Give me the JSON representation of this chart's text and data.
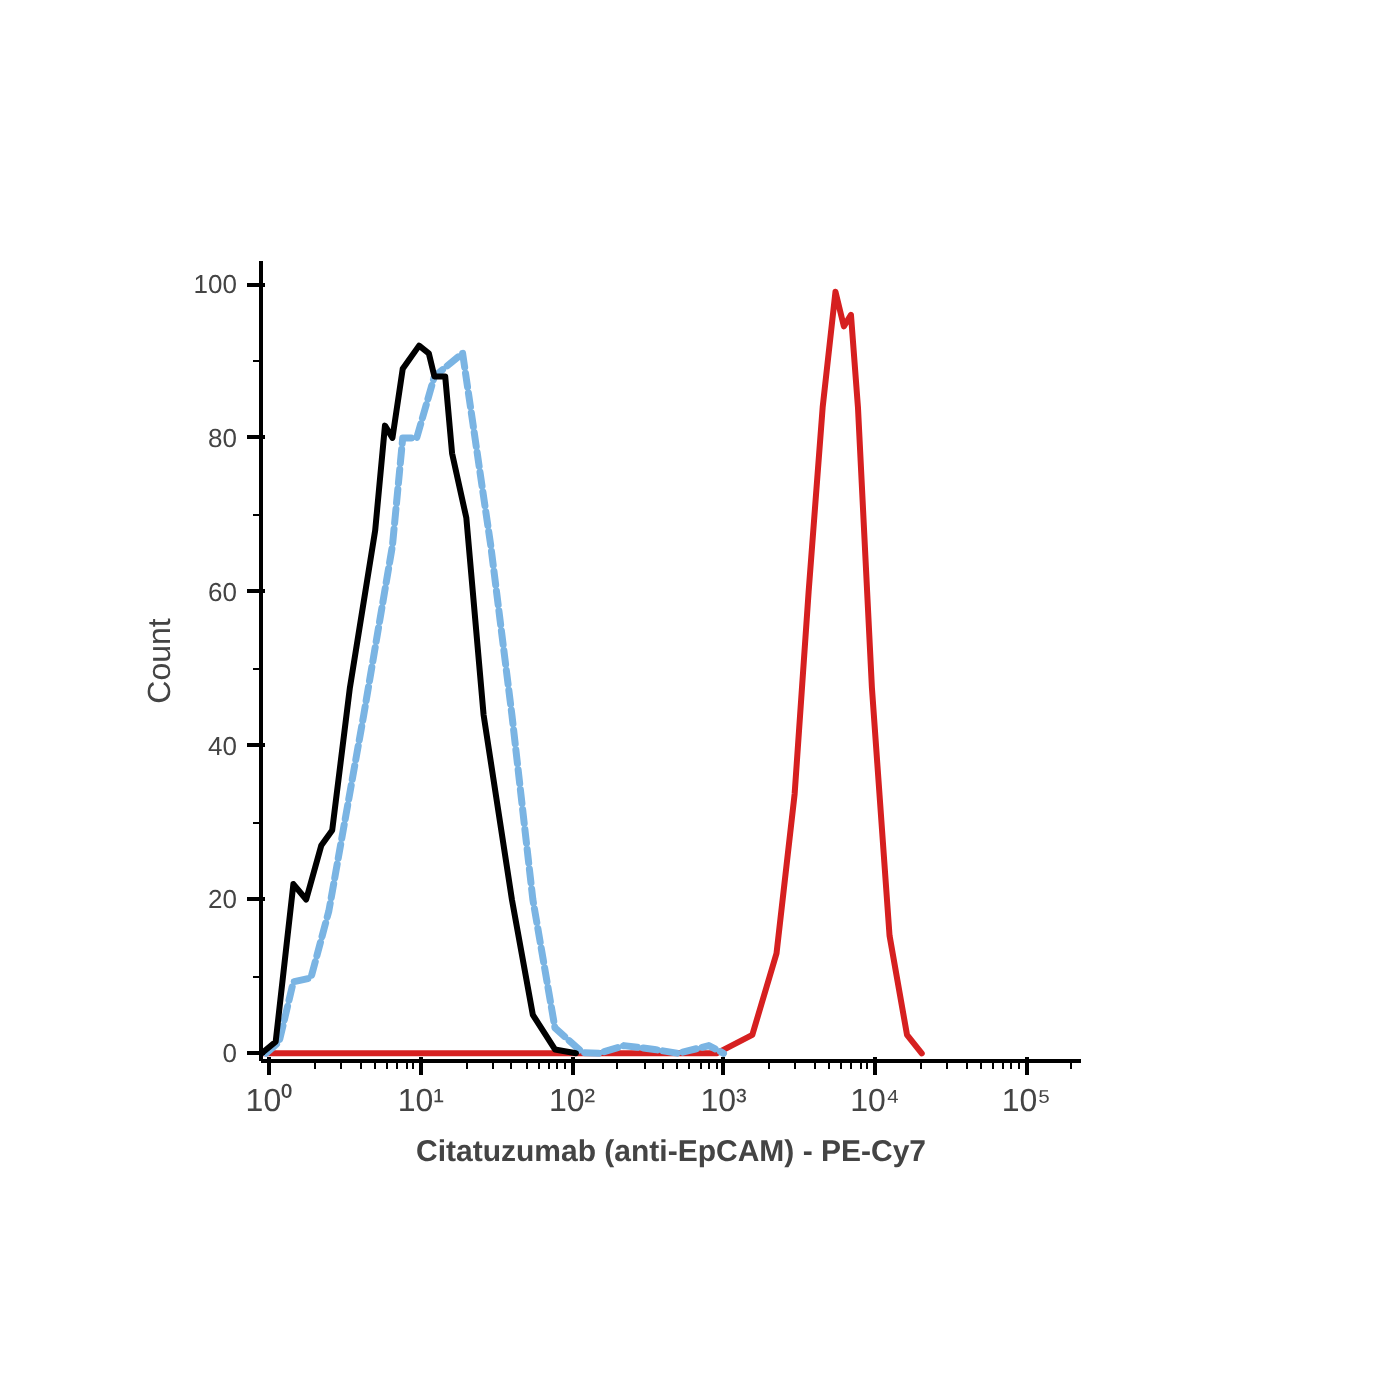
{
  "chart_data": {
    "type": "line",
    "xlabel": "Citatuzumab (anti-EpCAM) - PE-Cy7",
    "ylabel": "Count",
    "log": "x",
    "grid": false,
    "marker": "none",
    "xlim": [
      0.88,
      230000
    ],
    "ylim": [
      -1,
      103
    ],
    "xticks": [
      {
        "value": 1,
        "label": "10⁰"
      },
      {
        "value": 10,
        "label": "10¹"
      },
      {
        "value": 100,
        "label": "10²"
      },
      {
        "value": 1000,
        "label": "10³"
      },
      {
        "value": 10000,
        "label": "10⁴"
      },
      {
        "value": 100000,
        "label": "10⁵"
      }
    ],
    "yticks": [
      0,
      20,
      40,
      60,
      80,
      100
    ],
    "series": [
      {
        "color": "#d62020",
        "line_style": "solid",
        "x": [
          0.89,
          900,
          1550,
          2240,
          2950,
          3650,
          4520,
          5490,
          6240,
          6950,
          7730,
          9560,
          12500,
          16300,
          20400
        ],
        "values": [
          0,
          0,
          2.4,
          13,
          33.7,
          60,
          84,
          99,
          94.5,
          96,
          84,
          47.5,
          15.3,
          2.4,
          0
        ]
      },
      {
        "color": "#7ab4e3",
        "line_style": "dashed",
        "x": [
          0.95,
          1.16,
          1.44,
          1.88,
          2.47,
          4.2,
          6.5,
          7.6,
          9.4,
          12.3,
          18.9,
          22.2,
          29,
          40,
          55,
          77,
          117,
          150,
          220,
          350,
          500,
          800,
          1000
        ],
        "values": [
          0,
          1.5,
          9.3,
          9.8,
          18.5,
          44,
          66,
          80,
          80,
          88,
          91,
          81.6,
          66,
          44,
          20,
          3.3,
          0.1,
          0,
          1,
          0.5,
          0,
          1,
          0
        ]
      },
      {
        "color": "#000000",
        "line_style": "solid",
        "x": [
          0.89,
          1.1,
          1.44,
          1.75,
          2.2,
          2.6,
          3.4,
          5.0,
          5.8,
          6.5,
          7.6,
          9.75,
          11.3,
          12.3,
          14.5,
          16.1,
          20,
          26,
          40,
          55,
          77,
          106
        ],
        "values": [
          0,
          1.5,
          22,
          20,
          27,
          29,
          47.5,
          68,
          81.6,
          80,
          89,
          92,
          91,
          88,
          88,
          78,
          69.6,
          44,
          20,
          5,
          0.5,
          0
        ]
      }
    ]
  }
}
